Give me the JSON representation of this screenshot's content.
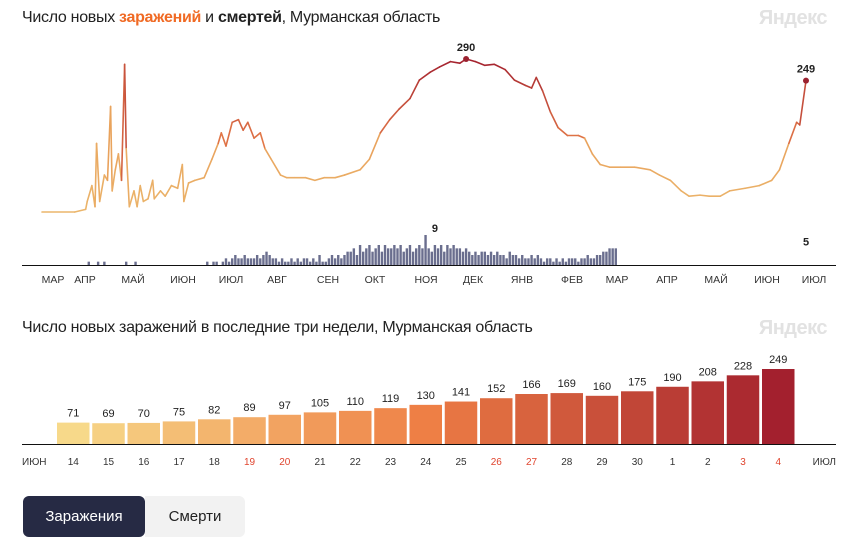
{
  "header1": {
    "part1": "Число новых ",
    "part2": "заражений",
    "part3": " и ",
    "part4": "смертей",
    "part5": ", Мурманская область"
  },
  "header2": "Число новых заражений в последние три недели, Мурманская область",
  "logo": "Яндекс",
  "buttons": {
    "infections": "Заражения",
    "deaths": "Смерти"
  },
  "chart_data": [
    {
      "type": "line",
      "title": "Число новых заражений и смертей, Мурманская область",
      "x_domain_days": [
        0,
        490
      ],
      "month_labels": [
        "МАР",
        "АПР",
        "МАЙ",
        "ИЮН",
        "ИЮЛ",
        "АВГ",
        "СЕН",
        "ОКТ",
        "НОЯ",
        "ДЕК",
        "ЯНВ",
        "ФЕВ",
        "МАР",
        "АПР",
        "МАЙ",
        "ИЮН",
        "ИЮЛ"
      ],
      "infections": {
        "points": [
          [
            0,
            0
          ],
          [
            21,
            0
          ],
          [
            28,
            5
          ],
          [
            29,
            20
          ],
          [
            32,
            50
          ],
          [
            34,
            10
          ],
          [
            35,
            130
          ],
          [
            37,
            20
          ],
          [
            40,
            70
          ],
          [
            42,
            60
          ],
          [
            44,
            200
          ],
          [
            45,
            40
          ],
          [
            47,
            80
          ],
          [
            49,
            110
          ],
          [
            51,
            60
          ],
          [
            53,
            280
          ],
          [
            54,
            120
          ],
          [
            56,
            10
          ],
          [
            59,
            40
          ],
          [
            61,
            10
          ],
          [
            63,
            50
          ],
          [
            65,
            20
          ],
          [
            68,
            25
          ],
          [
            71,
            60
          ],
          [
            72,
            25
          ],
          [
            76,
            40
          ],
          [
            79,
            30
          ],
          [
            83,
            50
          ],
          [
            87,
            45
          ],
          [
            90,
            90
          ],
          [
            91,
            20
          ],
          [
            94,
            55
          ],
          [
            98,
            60
          ],
          [
            104,
            65
          ],
          [
            109,
            100
          ],
          [
            113,
            130
          ],
          [
            115,
            150
          ],
          [
            118,
            125
          ],
          [
            122,
            170
          ],
          [
            126,
            175
          ],
          [
            129,
            155
          ],
          [
            132,
            170
          ],
          [
            136,
            140
          ],
          [
            140,
            150
          ],
          [
            143,
            120
          ],
          [
            147,
            100
          ],
          [
            153,
            70
          ],
          [
            157,
            65
          ],
          [
            162,
            65
          ],
          [
            169,
            65
          ],
          [
            175,
            60
          ],
          [
            181,
            65
          ],
          [
            188,
            65
          ],
          [
            194,
            70
          ],
          [
            204,
            80
          ],
          [
            210,
            100
          ],
          [
            217,
            150
          ],
          [
            223,
            175
          ],
          [
            229,
            195
          ],
          [
            236,
            215
          ],
          [
            242,
            250
          ],
          [
            249,
            265
          ],
          [
            255,
            275
          ],
          [
            262,
            285
          ],
          [
            268,
            282
          ],
          [
            272,
            290
          ],
          [
            278,
            285
          ],
          [
            284,
            278
          ],
          [
            290,
            280
          ],
          [
            297,
            270
          ],
          [
            303,
            250
          ],
          [
            310,
            240
          ],
          [
            314,
            235
          ],
          [
            317,
            255
          ],
          [
            321,
            230
          ],
          [
            326,
            190
          ],
          [
            331,
            160
          ],
          [
            337,
            145
          ],
          [
            344,
            145
          ],
          [
            348,
            140
          ],
          [
            353,
            110
          ],
          [
            358,
            90
          ],
          [
            364,
            85
          ],
          [
            371,
            85
          ],
          [
            380,
            85
          ],
          [
            390,
            80
          ],
          [
            396,
            70
          ],
          [
            403,
            60
          ],
          [
            410,
            40
          ],
          [
            415,
            30
          ],
          [
            422,
            32
          ],
          [
            428,
            30
          ],
          [
            435,
            30
          ],
          [
            441,
            40
          ],
          [
            451,
            45
          ],
          [
            460,
            50
          ],
          [
            468,
            60
          ],
          [
            473,
            80
          ],
          [
            479,
            130
          ],
          [
            484,
            170
          ],
          [
            486,
            165
          ],
          [
            490,
            249
          ]
        ],
        "labels": [
          {
            "day": 272,
            "value": 290,
            "text": "290"
          },
          {
            "day": 490,
            "value": 249,
            "text": "249"
          }
        ]
      },
      "deaths": {
        "start_day": 30,
        "step_days": 2,
        "values": [
          1,
          0,
          0,
          1,
          0,
          1,
          0,
          0,
          0,
          0,
          0,
          0,
          1,
          0,
          0,
          1,
          0,
          0,
          0,
          0,
          0,
          0,
          0,
          0,
          0,
          0,
          0,
          0,
          0,
          0,
          0,
          0,
          0,
          0,
          0,
          0,
          0,
          0,
          1,
          0,
          1,
          1,
          0,
          1,
          2,
          1,
          2,
          3,
          2,
          2,
          3,
          2,
          2,
          2,
          3,
          2,
          3,
          4,
          3,
          2,
          2,
          1,
          2,
          1,
          1,
          2,
          1,
          2,
          1,
          2,
          2,
          1,
          2,
          1,
          3,
          1,
          1,
          2,
          3,
          2,
          3,
          2,
          3,
          4,
          4,
          5,
          3,
          6,
          4,
          5,
          6,
          4,
          5,
          6,
          4,
          6,
          5,
          5,
          6,
          5,
          6,
          4,
          5,
          6,
          4,
          5,
          6,
          5,
          9,
          5,
          4,
          6,
          5,
          6,
          4,
          6,
          5,
          6,
          5,
          5,
          4,
          5,
          4,
          3,
          4,
          3,
          4,
          4,
          3,
          4,
          3,
          4,
          3,
          3,
          2,
          4,
          3,
          3,
          2,
          3,
          2,
          2,
          3,
          2,
          3,
          2,
          1,
          2,
          2,
          1,
          2,
          1,
          2,
          1,
          2,
          2,
          2,
          1,
          2,
          2,
          3,
          2,
          2,
          3,
          3,
          4,
          4,
          5,
          5,
          5
        ],
        "labels": [
          {
            "day": 252,
            "value": 9,
            "text": "9"
          },
          {
            "day": 490,
            "value": 5,
            "text": "5"
          }
        ]
      },
      "ylim_infections": [
        0,
        290
      ]
    },
    {
      "type": "bar",
      "title": "Число новых заражений в последние три недели, Мурманская область",
      "categories": [
        "14",
        "15",
        "16",
        "17",
        "18",
        "19",
        "20",
        "21",
        "22",
        "23",
        "24",
        "25",
        "26",
        "27",
        "28",
        "29",
        "30",
        "1",
        "2",
        "3",
        "4"
      ],
      "weekend": [
        false,
        false,
        false,
        false,
        false,
        true,
        true,
        false,
        false,
        false,
        false,
        false,
        true,
        true,
        false,
        false,
        false,
        false,
        false,
        true,
        true
      ],
      "values": [
        71,
        69,
        70,
        75,
        82,
        89,
        97,
        105,
        110,
        119,
        130,
        141,
        152,
        166,
        169,
        160,
        175,
        190,
        208,
        228,
        249
      ],
      "axis_start_label": "ИЮН",
      "axis_end_label": "ИЮЛ",
      "ylim": [
        0,
        249
      ]
    }
  ],
  "colors": {
    "low": "#f7d98a",
    "mid": "#ee7f45",
    "high": "#a3202e",
    "deaths": "#6a6e8e",
    "weekend": "#e0452f",
    "button_active": "#262a44"
  }
}
